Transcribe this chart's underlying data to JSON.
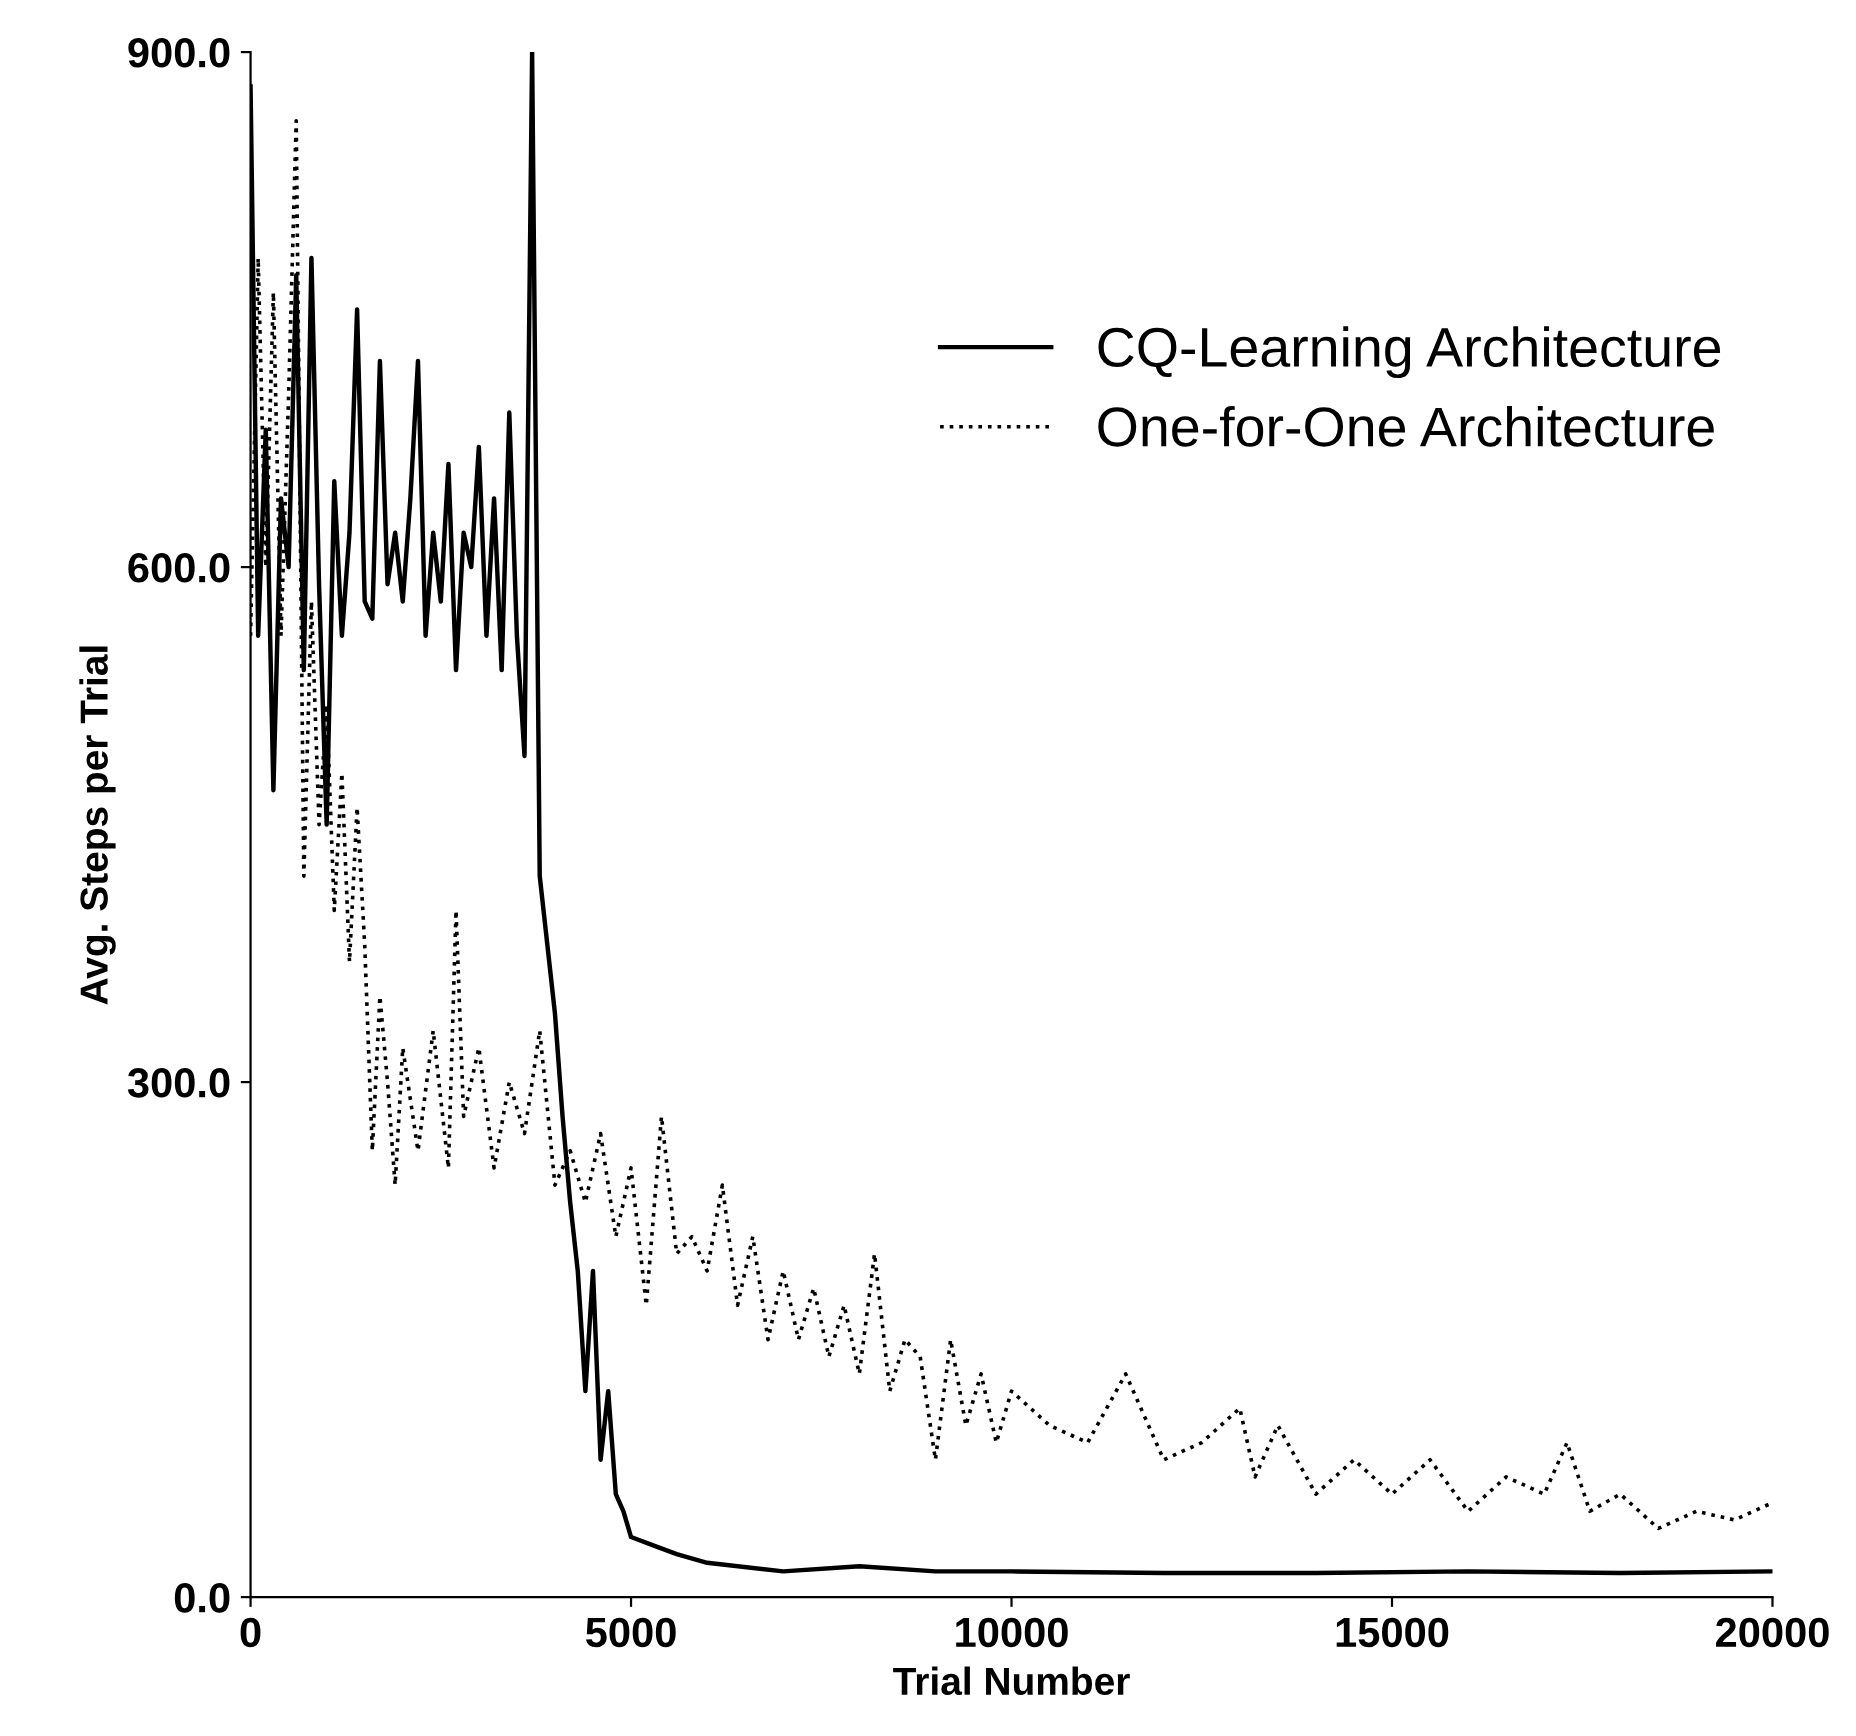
{
  "chart_data": {
    "type": "line",
    "xlabel": "Trial Number",
    "ylabel": "Avg. Steps per Trial",
    "xlim": [
      0,
      20000
    ],
    "ylim": [
      0,
      900
    ],
    "xticks": [
      0,
      5000,
      10000,
      15000,
      20000
    ],
    "yticks": [
      {
        "value": 0,
        "label": "0.0"
      },
      {
        "value": 300,
        "label": "300.0"
      },
      {
        "value": 600,
        "label": "600.0"
      },
      {
        "value": 900,
        "label": "900.0"
      }
    ],
    "grid": false,
    "legend": "right",
    "marker": "none",
    "series": [
      {
        "name": "CQ-Learning Architecture",
        "color": "#000000",
        "line_style": "solid",
        "x": [
          0,
          100,
          200,
          300,
          400,
          500,
          600,
          700,
          800,
          900,
          1000,
          1100,
          1200,
          1300,
          1400,
          1500,
          1600,
          1700,
          1800,
          1900,
          2000,
          2100,
          2200,
          2300,
          2400,
          2500,
          2600,
          2700,
          2800,
          2900,
          3000,
          3100,
          3200,
          3300,
          3400,
          3500,
          3600,
          3700,
          3800,
          3900,
          4000,
          4100,
          4200,
          4300,
          4400,
          4500,
          4600,
          4700,
          4800,
          4900,
          5000,
          5300,
          5600,
          6000,
          7000,
          8000,
          9000,
          10000,
          12000,
          14000,
          16000,
          18000,
          20000
        ],
        "values": [
          880,
          560,
          680,
          470,
          640,
          600,
          770,
          540,
          780,
          590,
          450,
          650,
          560,
          620,
          750,
          580,
          570,
          720,
          590,
          620,
          580,
          640,
          720,
          560,
          620,
          580,
          660,
          540,
          620,
          600,
          670,
          560,
          640,
          540,
          690,
          560,
          490,
          900,
          420,
          380,
          340,
          280,
          230,
          190,
          120,
          190,
          80,
          120,
          60,
          50,
          35,
          30,
          25,
          20,
          15,
          18,
          15,
          15,
          14,
          14,
          15,
          14,
          15
        ]
      },
      {
        "name": "One-for-One Architecture",
        "color": "#000000",
        "line_style": "dotted",
        "x": [
          0,
          100,
          200,
          300,
          400,
          500,
          600,
          700,
          800,
          900,
          1000,
          1100,
          1200,
          1300,
          1400,
          1500,
          1600,
          1700,
          1800,
          1900,
          2000,
          2200,
          2400,
          2600,
          2700,
          2800,
          3000,
          3200,
          3400,
          3600,
          3800,
          4000,
          4200,
          4400,
          4600,
          4800,
          5000,
          5200,
          5400,
          5600,
          5800,
          6000,
          6200,
          6400,
          6600,
          6800,
          7000,
          7200,
          7400,
          7600,
          7800,
          8000,
          8200,
          8400,
          8600,
          8800,
          9000,
          9200,
          9400,
          9600,
          9800,
          10000,
          10500,
          11000,
          11500,
          12000,
          12500,
          13000,
          13200,
          13500,
          14000,
          14500,
          15000,
          15500,
          16000,
          16500,
          17000,
          17300,
          17600,
          18000,
          18500,
          19000,
          19500,
          20000
        ],
        "values": [
          560,
          780,
          600,
          760,
          560,
          700,
          860,
          420,
          580,
          450,
          520,
          400,
          480,
          370,
          460,
          380,
          260,
          350,
          300,
          240,
          320,
          260,
          330,
          250,
          400,
          280,
          320,
          250,
          300,
          270,
          330,
          240,
          260,
          230,
          270,
          210,
          250,
          170,
          280,
          200,
          210,
          190,
          240,
          170,
          210,
          150,
          190,
          150,
          180,
          140,
          170,
          130,
          200,
          120,
          150,
          140,
          80,
          150,
          100,
          130,
          90,
          120,
          100,
          90,
          130,
          80,
          90,
          110,
          70,
          100,
          60,
          80,
          60,
          80,
          50,
          70,
          60,
          90,
          50,
          60,
          40,
          50,
          45,
          55
        ]
      }
    ]
  }
}
